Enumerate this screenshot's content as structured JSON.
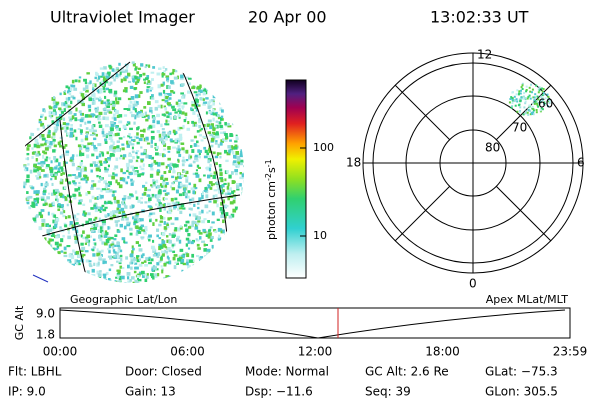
{
  "header": {
    "title": "Ultraviolet Imager",
    "date": "20 Apr 00",
    "time": "13:02:33 UT"
  },
  "colorbar": {
    "label": [
      "photon cm",
      "-2",
      "s",
      "-1"
    ],
    "ticks": [
      "100",
      "10"
    ]
  },
  "polar": {
    "hours": [
      "12",
      "18",
      "6",
      "0"
    ],
    "latitudes": [
      "80",
      "70",
      "60"
    ]
  },
  "altitude": {
    "left_label": "Geographic Lat/Lon",
    "right_label": "Apex MLat/MLT",
    "y_label": "GC Alt",
    "y_ticks": [
      "9.0",
      "1.8"
    ],
    "x_ticks": [
      "00:00",
      "06:00",
      "12:00",
      "18:00",
      "23:59"
    ]
  },
  "footer": {
    "rows": [
      [
        "Flt: LBHL",
        "Door: Closed",
        "Mode: Normal",
        "GC Alt: 2.6 Re",
        "GLat: −75.3"
      ],
      [
        "IP:  9.0",
        "Gain: 13",
        "Dsp: −11.6",
        "Seq: 39",
        "GLon: 305.5"
      ]
    ]
  }
}
